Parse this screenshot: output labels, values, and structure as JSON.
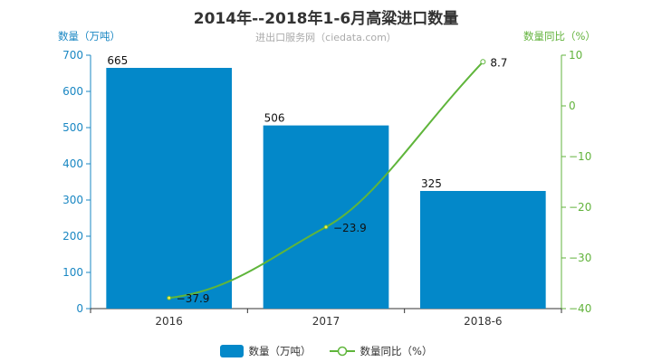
{
  "title": "2014年--2018年1-6月高粱进口数量",
  "subtitle": "进出口服务网（ciedata.com）",
  "colors": {
    "bar": "#0388c9",
    "line": "#5fb53b",
    "left_axis": "#1a87c3",
    "right_axis": "#62b33c",
    "point_fill": "#f7e94a"
  },
  "chart_data": {
    "type": "bar",
    "categories": [
      "2016",
      "2017",
      "2018-6"
    ],
    "series": [
      {
        "name": "数量（万吨）",
        "type": "bar",
        "axis": "left",
        "values": [
          665,
          506,
          325
        ]
      },
      {
        "name": "数量同比（%）",
        "type": "line",
        "axis": "right",
        "values": [
          -37.9,
          -23.9,
          8.7
        ]
      }
    ],
    "ylabel": "数量（万吨）",
    "ylabel_right": "数量同比（%）",
    "ylim": [
      0,
      700
    ],
    "ylim_right": [
      -40,
      10
    ],
    "yticks": [
      0,
      100,
      200,
      300,
      400,
      500,
      600,
      700
    ],
    "yticks_right": [
      -40,
      -30,
      -20,
      -10,
      0,
      10
    ],
    "grid": false,
    "legend_position": "bottom"
  }
}
